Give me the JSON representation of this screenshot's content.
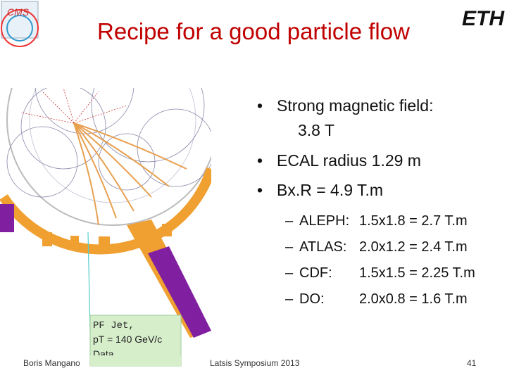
{
  "header": {
    "title": "Recipe for a good particle flow",
    "left_logo": "CMS",
    "right_logo": "ETH"
  },
  "bullets": [
    "Strong magnetic field:",
    "3.8 T",
    "ECAL radius 1.29 m",
    "Bx.R = 4.9 T.m"
  ],
  "sub_bullets": [
    {
      "label": "ALEPH:",
      "value": "1.5x1.8 = 2.7 T.m"
    },
    {
      "label": "ATLAS:",
      "value": "2.0x1.2 = 2.4 T.m"
    },
    {
      "label": "CDF:",
      "value": "1.5x1.5 = 2.25 T.m"
    },
    {
      "label": "DO:",
      "value": "2.0x0.8 = 1.6 T.m"
    }
  ],
  "callout": [
    "PF Jet,",
    "pT = 140 GeV/c",
    "Data"
  ],
  "footer": {
    "author": "Boris Mangano",
    "event": "Latsis Symposium 2013",
    "page": "41"
  }
}
